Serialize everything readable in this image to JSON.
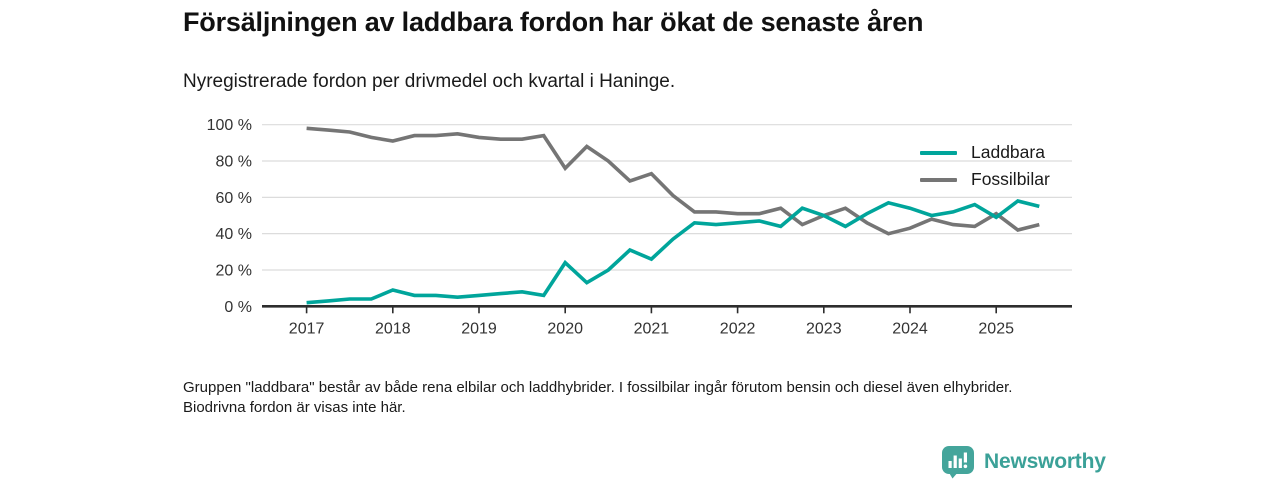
{
  "header": {
    "title": "Försäljningen av laddbara fordon har ökat de senaste åren",
    "subtitle": "Nyregistrerade fordon per drivmedel och kvartal i Haninge."
  },
  "footer": {
    "note": "Gruppen \"laddbara\" består av både rena elbilar och laddhybrider. I fossilbilar ingår förutom bensin och diesel även elhybrider. Biodrivna fordon är visas inte här.",
    "brand": "Newsworthy"
  },
  "chart_data": {
    "type": "line",
    "title": "Försäljningen av laddbara fordon har ökat de senaste åren",
    "subtitle": "Nyregistrerade fordon per drivmedel och kvartal i Haninge.",
    "x": [
      "2017 Q1",
      "2017 Q2",
      "2017 Q3",
      "2017 Q4",
      "2018 Q1",
      "2018 Q2",
      "2018 Q3",
      "2018 Q4",
      "2019 Q1",
      "2019 Q2",
      "2019 Q3",
      "2019 Q4",
      "2020 Q1",
      "2020 Q2",
      "2020 Q3",
      "2020 Q4",
      "2021 Q1",
      "2021 Q2",
      "2021 Q3",
      "2021 Q4",
      "2022 Q1",
      "2022 Q2",
      "2022 Q3",
      "2022 Q4",
      "2023 Q1",
      "2023 Q2",
      "2023 Q3",
      "2023 Q4",
      "2024 Q1",
      "2024 Q2",
      "2024 Q3",
      "2024 Q4",
      "2025 Q1",
      "2025 Q2",
      "2025 Q3"
    ],
    "series": [
      {
        "name": "Laddbara",
        "color": "#00a59b",
        "values": [
          2,
          3,
          4,
          4,
          9,
          6,
          6,
          5,
          6,
          7,
          8,
          6,
          24,
          13,
          20,
          31,
          26,
          37,
          46,
          45,
          46,
          47,
          44,
          54,
          50,
          44,
          51,
          57,
          54,
          50,
          52,
          56,
          49,
          58,
          55
        ]
      },
      {
        "name": "Fossilbilar",
        "color": "#757575",
        "values": [
          98,
          97,
          96,
          93,
          91,
          94,
          94,
          95,
          93,
          92,
          92,
          94,
          76,
          88,
          80,
          69,
          73,
          61,
          52,
          52,
          51,
          51,
          54,
          45,
          50,
          54,
          46,
          40,
          43,
          48,
          45,
          44,
          51,
          42,
          45
        ]
      }
    ],
    "ylim": [
      0,
      100
    ],
    "y_ticks": [
      0,
      20,
      40,
      60,
      80,
      100
    ],
    "y_tick_labels": [
      "0 %",
      "20 %",
      "40 %",
      "60 %",
      "80 %",
      "100 %"
    ],
    "x_tick_labels": [
      "2017",
      "2018",
      "2019",
      "2020",
      "2021",
      "2022",
      "2023",
      "2024",
      "2025"
    ],
    "grid": true,
    "legend_position": "top-right",
    "axis_color": "#2d2d2d",
    "grid_color": "#dcdcdc"
  }
}
